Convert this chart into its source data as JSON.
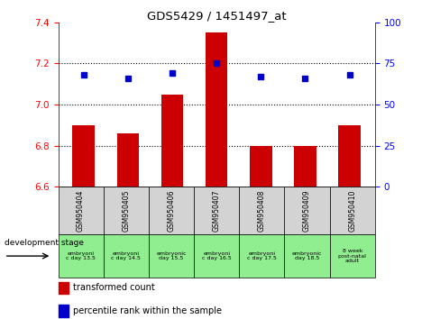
{
  "title": "GDS5429 / 1451497_at",
  "samples": [
    "GSM950404",
    "GSM950405",
    "GSM950406",
    "GSM950407",
    "GSM950408",
    "GSM950409",
    "GSM950410"
  ],
  "stage_labels": [
    "embryoni\nc day 13.5",
    "embryoni\nc day 14.5",
    "embryonic\nday 15.5",
    "embryoni\nc day 16.5",
    "embryoni\nc day 17.5",
    "embryonic\nday 18.5",
    "8 week\npost-natal\nadult"
  ],
  "bar_values": [
    6.9,
    6.86,
    7.05,
    7.35,
    6.8,
    6.8,
    6.9
  ],
  "percentile_values": [
    68,
    66,
    69,
    75,
    67,
    66,
    68
  ],
  "ylim_left": [
    6.6,
    7.4
  ],
  "ylim_right": [
    0,
    100
  ],
  "yticks_left": [
    6.6,
    6.8,
    7.0,
    7.2,
    7.4
  ],
  "yticks_right": [
    0,
    25,
    50,
    75,
    100
  ],
  "bar_color": "#cc0000",
  "dot_color": "#0000cc",
  "grid_color": "#000000",
  "label_bg_color": "#d3d3d3",
  "stage_bg_color": "#90ee90",
  "legend_bar_label": "transformed count",
  "legend_dot_label": "percentile rank within the sample",
  "dev_stage_label": "development stage"
}
